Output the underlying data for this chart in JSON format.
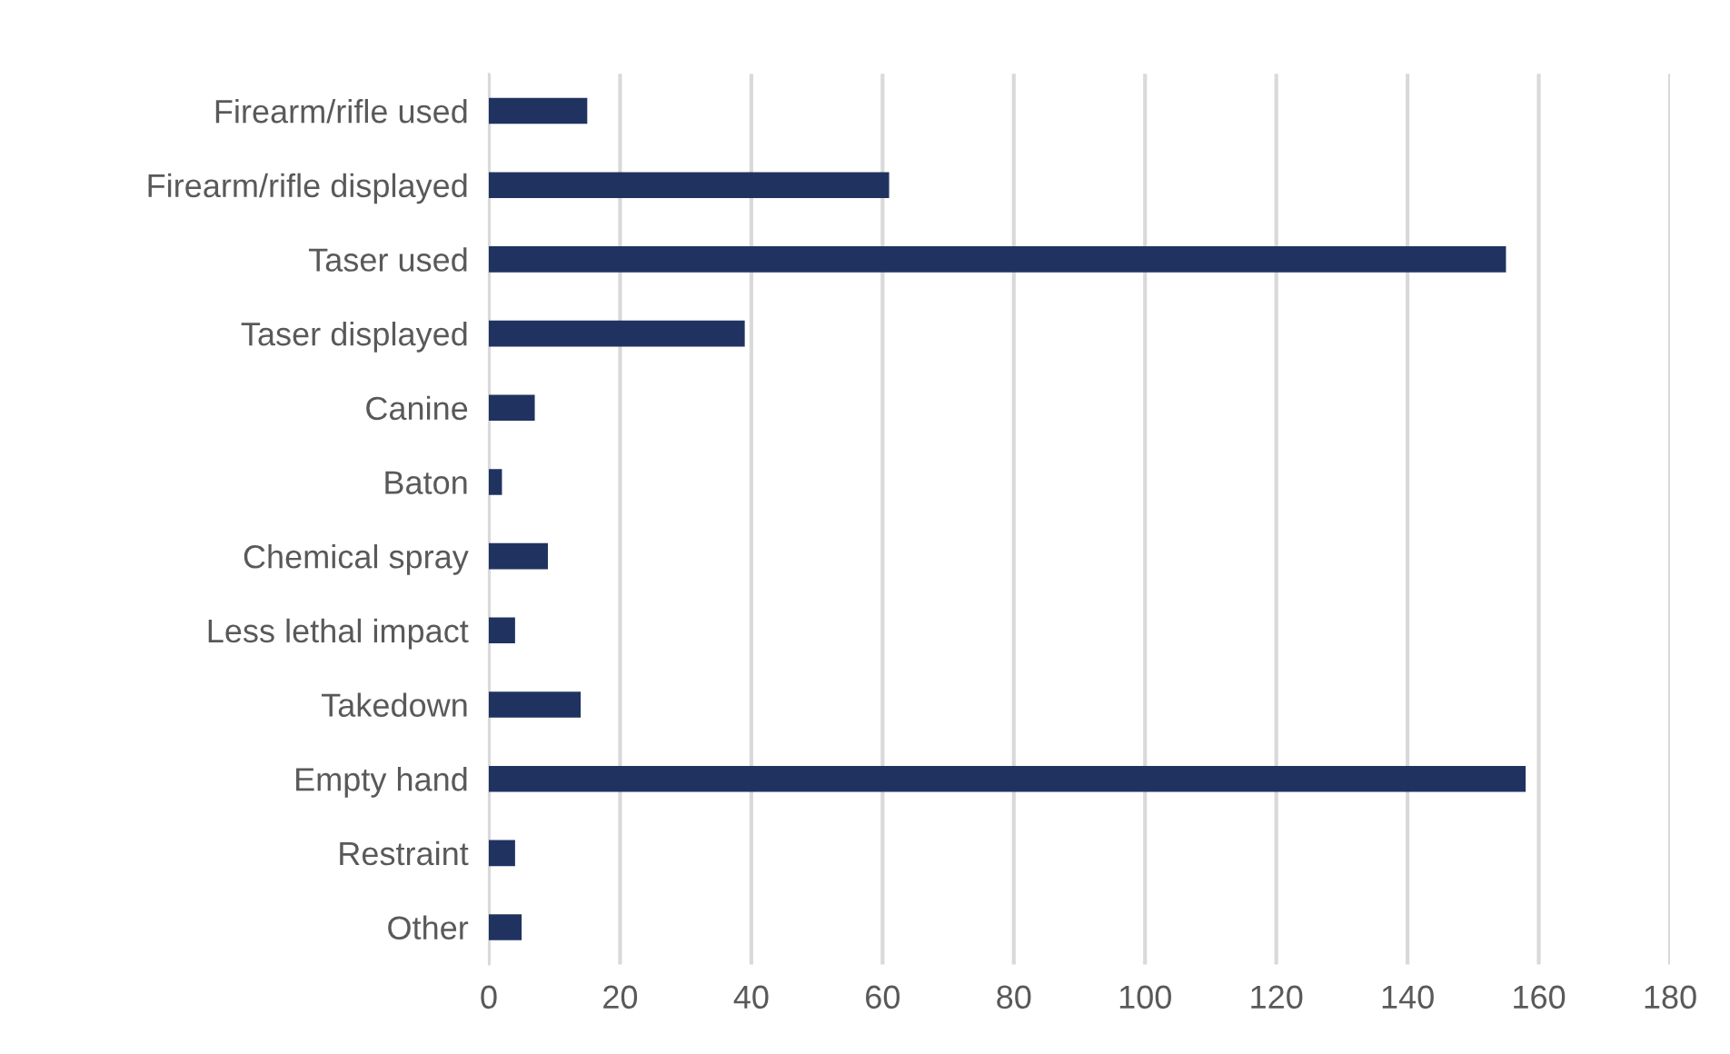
{
  "chart_data": {
    "type": "bar",
    "orientation": "horizontal",
    "categories": [
      "Firearm/rifle used",
      "Firearm/rifle displayed",
      "Taser used",
      "Taser displayed",
      "Canine",
      "Baton",
      "Chemical spray",
      "Less lethal impact",
      "Takedown",
      "Empty hand",
      "Restraint",
      "Other"
    ],
    "values": [
      15,
      61,
      155,
      39,
      7,
      2,
      9,
      4,
      14,
      158,
      4,
      5
    ],
    "color": "#203360",
    "xlim": [
      0,
      180
    ],
    "xticks": [
      0,
      20,
      40,
      60,
      80,
      100,
      120,
      140,
      160,
      180
    ],
    "grid": "x"
  }
}
